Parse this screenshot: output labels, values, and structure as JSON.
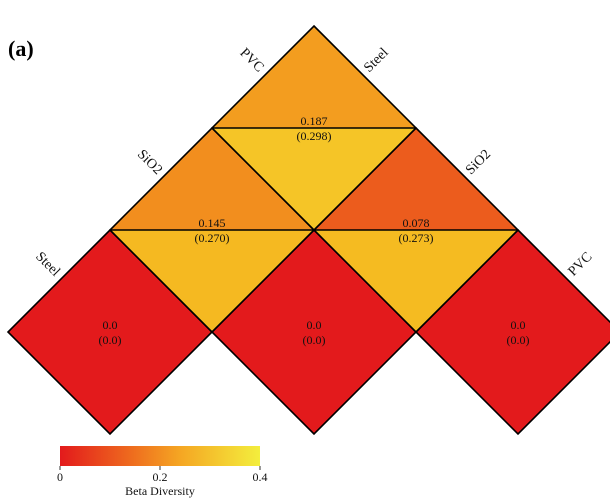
{
  "panel_label": "(a)",
  "colorbar": {
    "title": "Beta Diversity",
    "ticks": [
      "0",
      "0.2",
      "0.4"
    ],
    "colors": [
      "#e31a1c",
      "#f28a1e",
      "#f5b820",
      "#f3ee3d"
    ]
  },
  "chart_data": {
    "type": "heatmap",
    "title": "",
    "layout": "triangular pairwise matrix rotated 45 degrees",
    "groups": [
      "Steel",
      "SiO2",
      "PVC"
    ],
    "value_range": [
      0,
      0.4
    ],
    "side_labels": {
      "left": [
        "Steel",
        "SiO2",
        "PVC"
      ],
      "right": [
        "Steel",
        "SiO2",
        "PVC"
      ]
    },
    "cells": [
      {
        "pair": [
          "Steel",
          "Steel"
        ],
        "label": "0.0",
        "sublabel": "(0.0)",
        "value": 0.0,
        "subvalue": 0.0
      },
      {
        "pair": [
          "SiO2",
          "SiO2"
        ],
        "label": "0.0",
        "sublabel": "(0.0)",
        "value": 0.0,
        "subvalue": 0.0
      },
      {
        "pair": [
          "PVC",
          "PVC"
        ],
        "label": "0.0",
        "sublabel": "(0.0)",
        "value": 0.0,
        "subvalue": 0.0
      },
      {
        "pair": [
          "Steel",
          "SiO2"
        ],
        "label": "0.145",
        "sublabel": "(0.270)",
        "value": 0.145,
        "subvalue": 0.27
      },
      {
        "pair": [
          "SiO2",
          "PVC"
        ],
        "label": "0.078",
        "sublabel": "(0.273)",
        "value": 0.078,
        "subvalue": 0.273
      },
      {
        "pair": [
          "Steel",
          "PVC"
        ],
        "label": "0.187",
        "sublabel": "(0.298)",
        "value": 0.187,
        "subvalue": 0.298
      }
    ]
  }
}
